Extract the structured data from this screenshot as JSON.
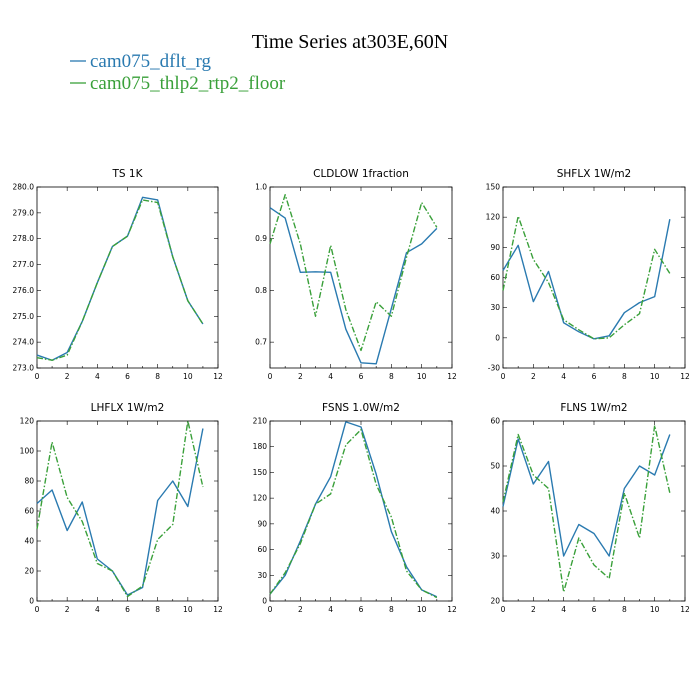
{
  "chart_data": {
    "type": "line",
    "title": "Time Series at303E,60N",
    "legend": {
      "placement": "top-left",
      "entries": [
        {
          "name": "cam075_dflt_rg",
          "color": "#2a7ab0",
          "style": "solid"
        },
        {
          "name": "cam075_thlp2_rtp2_floor",
          "color": "#3aa03a",
          "style": "dash-dot"
        }
      ]
    },
    "x": [
      0,
      1,
      2,
      3,
      4,
      5,
      6,
      7,
      8,
      9,
      10,
      11
    ],
    "xlim": [
      0,
      12
    ],
    "xticks": [
      0,
      2,
      4,
      6,
      8,
      10,
      12
    ],
    "panels": [
      {
        "title": "TS   1K",
        "ylim": [
          273.0,
          280.0
        ],
        "yticks": [
          273.0,
          274.0,
          275.0,
          276.0,
          277.0,
          278.0,
          279.0,
          280.0
        ],
        "ytick_labels": [
          "273.0",
          "274.0",
          "275.0",
          "276.0",
          "277.0",
          "278.0",
          "279.0",
          "280.0"
        ],
        "series": [
          {
            "name": "cam075_dflt_rg",
            "values": [
              273.5,
              273.3,
              273.6,
              274.8,
              276.3,
              277.7,
              278.1,
              279.6,
              279.5,
              277.3,
              275.6,
              274.7
            ]
          },
          {
            "name": "cam075_thlp2_rtp2_floor",
            "values": [
              273.4,
              273.3,
              273.5,
              274.8,
              276.3,
              277.7,
              278.1,
              279.5,
              279.4,
              277.3,
              275.6,
              274.7
            ]
          }
        ]
      },
      {
        "title": "CLDLOW   1fraction",
        "ylim": [
          0.65,
          1.0
        ],
        "yticks": [
          0.7,
          0.8,
          0.9,
          1.0
        ],
        "ytick_labels": [
          "0.7",
          "0.8",
          "0.9",
          "1.0"
        ],
        "series": [
          {
            "name": "cam075_dflt_rg",
            "values": [
              0.96,
              0.94,
              0.835,
              0.836,
              0.835,
              0.725,
              0.66,
              0.658,
              0.765,
              0.873,
              0.89,
              0.92
            ]
          },
          {
            "name": "cam075_thlp2_rtp2_floor",
            "values": [
              0.89,
              0.985,
              0.89,
              0.75,
              0.887,
              0.763,
              0.684,
              0.778,
              0.75,
              0.864,
              0.97,
              0.922
            ]
          }
        ]
      },
      {
        "title": "SHFLX   1W/m2",
        "ylim": [
          -30,
          150
        ],
        "yticks": [
          -30,
          0,
          30,
          60,
          90,
          120,
          150
        ],
        "ytick_labels": [
          "-30",
          "0",
          "30",
          "60",
          "90",
          "120",
          "150"
        ],
        "series": [
          {
            "name": "cam075_dflt_rg",
            "values": [
              67,
              92,
              36,
              66,
              15,
              6,
              -1,
              2,
              25,
              35,
              41,
              118
            ]
          },
          {
            "name": "cam075_thlp2_rtp2_floor",
            "values": [
              47,
              121,
              78,
              55,
              18,
              8,
              -1,
              0,
              13,
              24,
              88,
              64
            ]
          }
        ]
      },
      {
        "title": "LHFLX   1W/m2",
        "ylim": [
          0,
          120
        ],
        "yticks": [
          0,
          20,
          40,
          60,
          80,
          100,
          120
        ],
        "ytick_labels": [
          "0",
          "20",
          "40",
          "60",
          "80",
          "100",
          "120"
        ],
        "series": [
          {
            "name": "cam075_dflt_rg",
            "values": [
              65,
              74,
              47,
              66,
              28,
              20,
              4,
              9,
              67,
              80,
              63,
              115
            ]
          },
          {
            "name": "cam075_thlp2_rtp2_floor",
            "values": [
              48,
              106,
              69,
              53,
              25,
              20,
              3,
              10,
              41,
              51,
              120,
              76
            ]
          }
        ]
      },
      {
        "title": "FSNS   1.0W/m2",
        "ylim": [
          0,
          210
        ],
        "yticks": [
          0,
          30,
          60,
          90,
          120,
          150,
          180,
          210
        ],
        "ytick_labels": [
          "0",
          "30",
          "60",
          "90",
          "120",
          "150",
          "180",
          "210"
        ],
        "series": [
          {
            "name": "cam075_dflt_rg",
            "values": [
              8,
              30,
              70,
              113,
              145,
              209,
              203,
              148,
              81,
              40,
              13,
              5
            ]
          },
          {
            "name": "cam075_thlp2_rtp2_floor",
            "values": [
              8,
              33,
              67,
              113,
              125,
              182,
              200,
              136,
              98,
              35,
              13,
              4
            ]
          }
        ]
      },
      {
        "title": "FLNS   1W/m2",
        "ylim": [
          20,
          60
        ],
        "yticks": [
          20,
          30,
          40,
          50,
          60
        ],
        "ytick_labels": [
          "20",
          "30",
          "40",
          "50",
          "60"
        ],
        "series": [
          {
            "name": "cam075_dflt_rg",
            "values": [
              41,
              56,
              46,
              51,
              30,
              37,
              35,
              30,
              45,
              50,
              48,
              57
            ]
          },
          {
            "name": "cam075_thlp2_rtp2_floor",
            "values": [
              42,
              57,
              48,
              45,
              22,
              34,
              28,
              25,
              44,
              34,
              59,
              44
            ]
          }
        ]
      }
    ]
  }
}
